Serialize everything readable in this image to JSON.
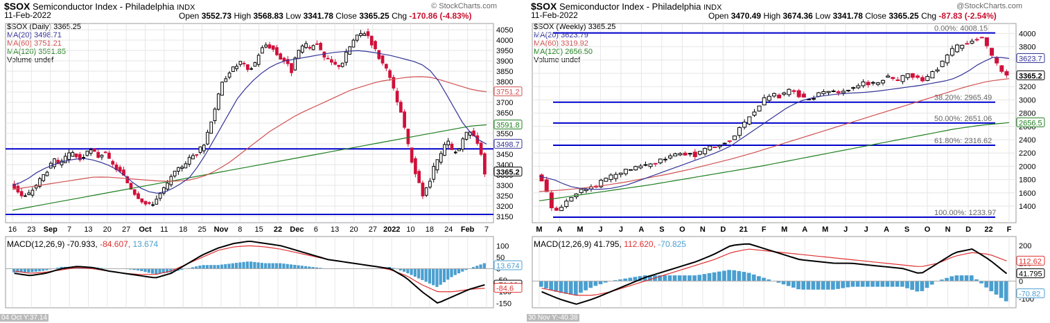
{
  "panels": [
    {
      "id": "daily",
      "symbol": "$SOX",
      "name": "Semiconductor Index - Philadelphia",
      "exchange": "INDX",
      "date": "11-Feb-2022",
      "brand": "© StockCharts.com",
      "ohlc": {
        "open_label": "Open",
        "open": "3552.73",
        "high_label": "High",
        "high": "3568.83",
        "low_label": "Low",
        "low": "3341.78",
        "close_label": "Close",
        "close": "3365.25",
        "chg_label": "Chg",
        "chg": "-170.86 (-4.83%)"
      },
      "legend": [
        "$SOX (Daily) 3365.25",
        "MA(20) 3498.71",
        "MA(60) 3751.21",
        "MA(120) 3591.85",
        "Volume undef"
      ],
      "macd_label": {
        "name": "MACD(12,26,9)",
        "v1": "-70.933,",
        "v2": "-84.607,",
        "v3": "13.674"
      },
      "footer": "04 Oct Y:37.14",
      "price_ticks": [
        "4050",
        "4000",
        "3950",
        "3900",
        "3850",
        "3800",
        "3750",
        "3700",
        "3650",
        "3600",
        "3550",
        "3500",
        "3450",
        "3400",
        "3350",
        "3300",
        "3250",
        "3200",
        "3150"
      ],
      "price_tags": {
        "ma60": "3751.2",
        "ma120": "3591.8",
        "ma20": "3498.7",
        "close": "3365.2"
      },
      "x_ticks": [
        "16",
        "23",
        "Sep",
        "7",
        "13",
        "20",
        "27",
        "Oct",
        "11",
        "18",
        "25",
        "Nov",
        "8",
        "15",
        "22",
        "Dec",
        "6",
        "13",
        "20",
        "27",
        "2022",
        "10",
        "18",
        "24",
        "Feb",
        "7"
      ],
      "macd_ticks": [
        "100",
        "50",
        "0",
        "-50",
        "-100",
        "-150"
      ],
      "macd_tags": {
        "hist": "13.674",
        "macd": "-70.93",
        "signal": "-84.6"
      }
    },
    {
      "id": "weekly",
      "symbol": "$SOX",
      "name": "Semiconductor Index - Philadelphia",
      "exchange": "INDX",
      "date": "11-Feb-2022",
      "brand": "@StockCharts.com",
      "ohlc": {
        "open_label": "Open",
        "open": "3470.49",
        "high_label": "High",
        "high": "3674.36",
        "low_label": "Low",
        "low": "3341.78",
        "close_label": "Close",
        "close": "3365.25",
        "chg_label": "Chg",
        "chg": "-87.83 (-2.54%)"
      },
      "legend": [
        "$SOX (Weekly) 3365.25",
        "MA(20) 3623.79",
        "MA(60) 3319.92",
        "MA(120) 2656.50",
        "Volume undef"
      ],
      "macd_label": {
        "name": "MACD(12,26,9)",
        "v1": "41.795,",
        "v2": "112.620,",
        "v3": "-70.825"
      },
      "footer": "30 Nov Y:-40.38",
      "price_ticks": [
        "4000",
        "3800",
        "3600",
        "3400",
        "3200",
        "3000",
        "2800",
        "2600",
        "2400",
        "2200",
        "2000",
        "1800",
        "1600",
        "1400"
      ],
      "price_tags": {
        "ma20": "3623.7",
        "close": "3365.2",
        "ma120": "2656.5"
      },
      "fib": [
        {
          "label": "0.00%: 4008.15",
          "value": 4008.15
        },
        {
          "label": "38.20%: 2965.49",
          "value": 2965.49
        },
        {
          "label": "50.00%: 2651.06",
          "value": 2651.06
        },
        {
          "label": "61.80%: 2316.62",
          "value": 2316.62
        },
        {
          "label": "100.00%: 1233.97",
          "value": 1233.97
        }
      ],
      "x_ticks": [
        "M",
        "A",
        "M",
        "J",
        "J",
        "A",
        "S",
        "O",
        "N",
        "D",
        "21",
        "F",
        "M",
        "A",
        "M",
        "J",
        "J",
        "A",
        "S",
        "O",
        "N",
        "D",
        "22",
        "F"
      ],
      "macd_ticks": [
        "200",
        "100",
        "0",
        "-100"
      ],
      "macd_tags": {
        "signal": "112.62",
        "macd": "41.795",
        "hist": "-70.82"
      }
    }
  ],
  "chart_data": [
    {
      "type": "candlestick",
      "title": "$SOX Semiconductor Index - Philadelphia INDX (Daily)",
      "ylim": [
        3120,
        4080
      ],
      "horizontal_lines": [
        3476,
        3160
      ],
      "ohlc_path": [
        3310,
        3280,
        3240,
        3260,
        3300,
        3340,
        3380,
        3420,
        3400,
        3440,
        3460,
        3420,
        3450,
        3470,
        3440,
        3460,
        3410,
        3380,
        3350,
        3300,
        3260,
        3230,
        3200,
        3220,
        3260,
        3300,
        3350,
        3380,
        3410,
        3440,
        3460,
        3500,
        3600,
        3700,
        3800,
        3850,
        3870,
        3900,
        3850,
        3880,
        3950,
        3980,
        3960,
        3920,
        3900,
        3850,
        3940,
        3980,
        3960,
        4000,
        3920,
        3900,
        3880,
        3880,
        3950,
        4000,
        4030,
        4040,
        3980,
        3920,
        3870,
        3800,
        3700,
        3600,
        3450,
        3350,
        3250,
        3300,
        3400,
        3450,
        3520,
        3450,
        3480,
        3550,
        3560,
        3500,
        3365
      ],
      "ma20_path": [
        3300,
        3320,
        3360,
        3390,
        3410,
        3425,
        3430,
        3420,
        3400,
        3370,
        3320,
        3280,
        3260,
        3270,
        3300,
        3340,
        3420,
        3520,
        3620,
        3720,
        3790,
        3840,
        3880,
        3900,
        3910,
        3920,
        3930,
        3940,
        3945,
        3950,
        3945,
        3935,
        3925,
        3910,
        3895,
        3870,
        3800,
        3700,
        3600,
        3530,
        3499
      ],
      "ma60_path": [
        3280,
        3290,
        3300,
        3310,
        3320,
        3330,
        3340,
        3340,
        3335,
        3330,
        3325,
        3320,
        3320,
        3325,
        3340,
        3370,
        3410,
        3460,
        3510,
        3560,
        3600,
        3640,
        3670,
        3700,
        3730,
        3760,
        3780,
        3800,
        3810,
        3820,
        3825,
        3820,
        3800,
        3780,
        3760,
        3751
      ],
      "ma120_path": [
        3180,
        3195,
        3210,
        3225,
        3240,
        3255,
        3270,
        3285,
        3300,
        3315,
        3330,
        3345,
        3360,
        3375,
        3390,
        3405,
        3420,
        3435,
        3450,
        3465,
        3480,
        3495,
        3510,
        3525,
        3540,
        3555,
        3570,
        3585,
        3592
      ],
      "macd": {
        "ylim": [
          -170,
          140
        ],
        "macd_path": [
          -20,
          -30,
          -20,
          0,
          10,
          5,
          -10,
          -20,
          -30,
          -40,
          -20,
          20,
          60,
          90,
          110,
          120,
          110,
          100,
          80,
          60,
          40,
          30,
          20,
          10,
          0,
          -40,
          -100,
          -150,
          -120,
          -90,
          -70
        ],
        "signal_path": [
          -10,
          -20,
          -15,
          -5,
          5,
          0,
          -10,
          -20,
          -25,
          -25,
          -10,
          20,
          50,
          80,
          95,
          100,
          95,
          85,
          70,
          55,
          40,
          30,
          20,
          10,
          -5,
          -30,
          -70,
          -100,
          -100,
          -90,
          -85
        ]
      }
    },
    {
      "type": "candlestick",
      "title": "$SOX Semiconductor Index - Philadelphia INDX (Weekly)",
      "ylim": [
        1150,
        4150
      ],
      "horizontal_lines": [
        4008.15,
        2965.49,
        2651.06,
        2316.62,
        1233.97
      ],
      "ohlc_path": [
        1900,
        1700,
        1300,
        1400,
        1550,
        1620,
        1650,
        1700,
        1800,
        1850,
        1900,
        1950,
        1980,
        2000,
        2050,
        2100,
        2150,
        2180,
        2200,
        2150,
        2250,
        2300,
        2350,
        2400,
        2550,
        2700,
        2850,
        3000,
        3100,
        3050,
        3150,
        3100,
        3000,
        3050,
        3100,
        3150,
        3100,
        3150,
        3200,
        3250,
        3250,
        3300,
        3350,
        3300,
        3400,
        3350,
        3300,
        3400,
        3500,
        3700,
        3800,
        3850,
        3900,
        3950,
        3700,
        3500,
        3365
      ],
      "ma20_path": [
        1850,
        1800,
        1700,
        1660,
        1650,
        1670,
        1720,
        1800,
        1880,
        1960,
        2040,
        2120,
        2200,
        2300,
        2450,
        2600,
        2750,
        2900,
        3000,
        3050,
        3080,
        3100,
        3110,
        3130,
        3160,
        3190,
        3220,
        3260,
        3300,
        3400,
        3550,
        3650,
        3624
      ],
      "ma60_path": [
        1620,
        1640,
        1670,
        1710,
        1760,
        1820,
        1880,
        1950,
        2030,
        2110,
        2200,
        2300,
        2400,
        2500,
        2600,
        2700,
        2800,
        2900,
        3000,
        3100,
        3200,
        3280,
        3320
      ],
      "ma120_path": [
        1480,
        1540,
        1600,
        1660,
        1720,
        1790,
        1860,
        1930,
        2000,
        2080,
        2160,
        2240,
        2320,
        2400,
        2480,
        2560,
        2620,
        2657
      ],
      "macd": {
        "ylim": [
          -150,
          250
        ],
        "macd_path": [
          -60,
          -100,
          -130,
          -100,
          -60,
          -20,
          20,
          50,
          80,
          110,
          150,
          200,
          210,
          180,
          150,
          120,
          110,
          100,
          100,
          90,
          80,
          70,
          40,
          100,
          160,
          180,
          120,
          42
        ],
        "signal_path": [
          -40,
          -60,
          -80,
          -80,
          -60,
          -30,
          0,
          30,
          60,
          90,
          120,
          160,
          180,
          170,
          160,
          150,
          140,
          130,
          120,
          110,
          100,
          90,
          80,
          100,
          140,
          160,
          150,
          113
        ]
      }
    }
  ],
  "colors": {
    "up": "#000000",
    "down": "#d0103a",
    "ma20": "#333399",
    "ma60": "#d05050",
    "ma120": "#1e7f1e",
    "hline": "#0000cc",
    "hist": "#4a9fd0",
    "macd": "#000000",
    "signal": "#e03030",
    "grid": "#e6e6e6"
  }
}
